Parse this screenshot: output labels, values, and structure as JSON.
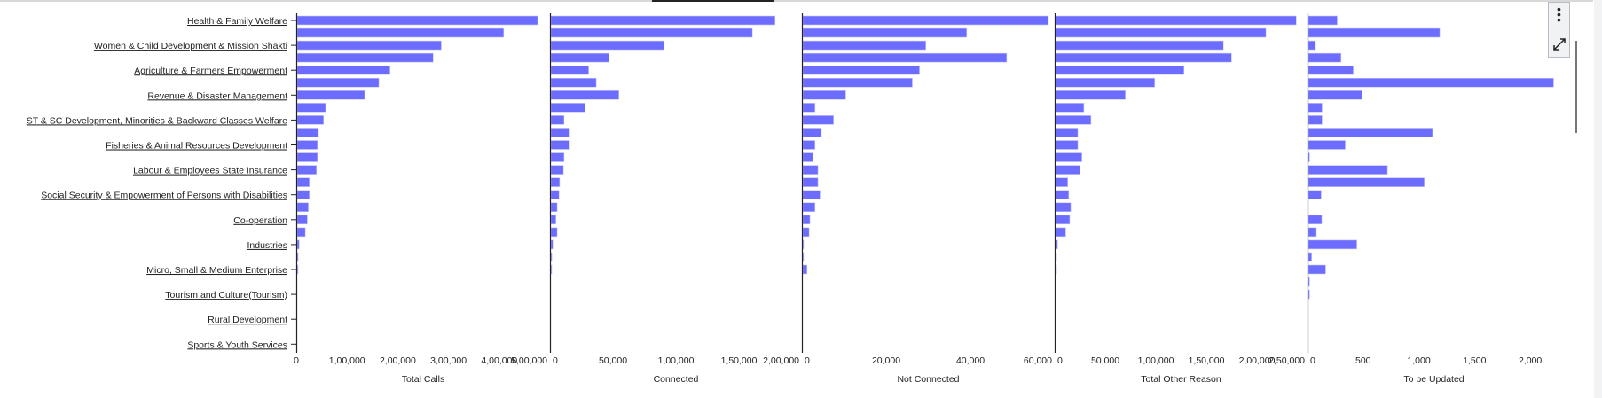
{
  "chart_data": {
    "type": "bar",
    "orientation": "horizontal",
    "bar_color": "#6c6cff",
    "categories": [
      "Health & Family Welfare",
      "",
      "Women & Child Development & Mission Shakti",
      "",
      "Agriculture & Farmers  Empowerment",
      "",
      "Revenue & Disaster Management",
      "",
      "ST & SC Development, Minorities & Backward Classes Welfare",
      "",
      "Fisheries & Animal Resources Development",
      "",
      "Labour & Employees State Insurance",
      "",
      "Social Security & Empowerment of Persons with Disabilities",
      "",
      "Co-operation",
      "",
      "Industries",
      "",
      "Micro, Small & Medium Enterprise",
      "",
      "Tourism and Culture(Tourism)",
      "",
      "Rural Development",
      "",
      "Sports & Youth Services"
    ],
    "panels": [
      {
        "title": "Total Calls",
        "xlim": [
          0,
          500000
        ],
        "tick_labels": [
          "0",
          "1,00,000",
          "2,00,000",
          "3,00,000",
          "4,00,000",
          "5,00,000"
        ],
        "tick_values": [
          0,
          100000,
          200000,
          300000,
          400000,
          500000
        ],
        "values": [
          474000,
          407000,
          284000,
          268000,
          183000,
          161000,
          133000,
          56000,
          52000,
          42000,
          40000,
          40000,
          38000,
          24000,
          24000,
          22000,
          20000,
          16000,
          4000,
          2000,
          1000,
          0,
          0,
          0,
          0,
          0,
          0
        ]
      },
      {
        "title": "Connected",
        "xlim": [
          0,
          200000
        ],
        "tick_labels": [
          "0",
          "50,000",
          "1,00,000",
          "1,50,000",
          "2,00,000"
        ],
        "tick_values": [
          0,
          50000,
          100000,
          150000,
          200000
        ],
        "values": [
          178000,
          160000,
          90000,
          46000,
          30000,
          36000,
          54000,
          27000,
          10500,
          15000,
          15000,
          10500,
          10000,
          7000,
          6500,
          5000,
          4000,
          5000,
          1600,
          800,
          400,
          0,
          0,
          0,
          0,
          0,
          0
        ]
      },
      {
        "title": "Not Connected",
        "xlim": [
          0,
          60000
        ],
        "tick_labels": [
          "0",
          "20,000",
          "40,000",
          "60,000"
        ],
        "tick_values": [
          0,
          20000,
          40000,
          60000
        ],
        "values": [
          58300,
          38900,
          29200,
          48400,
          27700,
          26000,
          10200,
          2900,
          7300,
          4400,
          2900,
          2400,
          3600,
          3600,
          4100,
          2900,
          1700,
          1500,
          200,
          200,
          1000,
          0,
          0,
          0,
          0,
          0,
          0
        ]
      },
      {
        "title": "Total Other Reason",
        "xlim": [
          0,
          250000
        ],
        "tick_labels": [
          "0",
          "50,000",
          "1,00,000",
          "1,50,000",
          "2,00,000",
          "2,50,000"
        ],
        "tick_values": [
          0,
          50000,
          100000,
          150000,
          200000,
          250000
        ],
        "values": [
          238000,
          208000,
          166000,
          174000,
          127000,
          98000,
          69000,
          28000,
          35000,
          22000,
          22000,
          26000,
          24000,
          12000,
          13000,
          15000,
          14000,
          10000,
          2000,
          1000,
          1000,
          0,
          0,
          0,
          0,
          0,
          0
        ]
      },
      {
        "title": "To be Updated",
        "xlim": [
          0,
          2270
        ],
        "tick_labels": [
          "0",
          "500",
          "1,000",
          "1,500",
          "2,000"
        ],
        "tick_values": [
          0,
          500,
          1000,
          1500,
          2000
        ],
        "values": [
          259,
          1180,
          64,
          293,
          403,
          2202,
          480,
          123,
          123,
          1115,
          331,
          11,
          710,
          1041,
          115,
          0,
          120,
          72,
          435,
          29,
          155,
          11,
          11,
          0,
          0,
          0,
          0
        ]
      }
    ],
    "grid": false
  },
  "toolbar": {
    "menu_icon": "more-vertical-icon",
    "expand_icon": "expand-icon"
  }
}
